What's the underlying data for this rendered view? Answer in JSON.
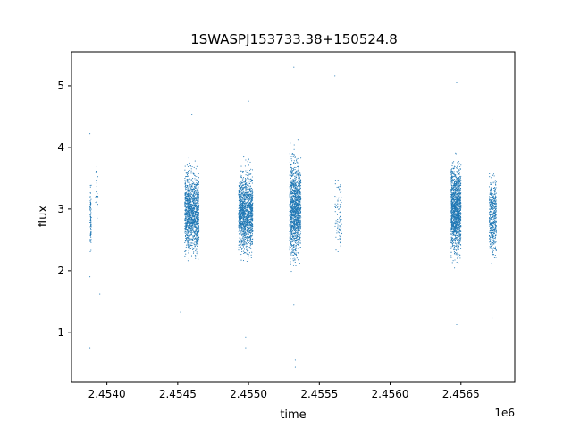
{
  "chart_data": {
    "type": "scatter",
    "title": "1SWASPJ153733.38+150524.8",
    "xlabel": "time",
    "ylabel": "flux",
    "x_offset_label": "1e6",
    "xlim": [
      2.45375,
      2.45688
    ],
    "ylim": [
      0.2,
      5.55
    ],
    "x_ticks": [
      2.454,
      2.4545,
      2.455,
      2.4555,
      2.456,
      2.4565
    ],
    "x_tick_labels": [
      "2.4540",
      "2.4545",
      "2.4550",
      "2.4555",
      "2.4560",
      "2.4565"
    ],
    "y_ticks": [
      1,
      2,
      3,
      4,
      5
    ],
    "y_tick_labels": [
      "1",
      "2",
      "3",
      "4",
      "5"
    ],
    "grid": false,
    "point_color": "#1f77b4",
    "clusters": [
      {
        "x_range": [
          2.45388,
          2.45389
        ],
        "y_center": 2.85,
        "y_spread": [
          2.2,
          3.6
        ],
        "density": "low"
      },
      {
        "x_range": [
          2.45392,
          2.45394
        ],
        "y_center": 3.3,
        "y_spread": [
          2.4,
          3.7
        ],
        "density": "sparse"
      },
      {
        "x_range": [
          2.45455,
          2.45465
        ],
        "y_center": 2.95,
        "y_spread": [
          2.1,
          3.9
        ],
        "density": "high"
      },
      {
        "x_range": [
          2.45493,
          2.45503
        ],
        "y_center": 2.95,
        "y_spread": [
          2.1,
          3.9
        ],
        "density": "high"
      },
      {
        "x_range": [
          2.45529,
          2.45537
        ],
        "y_center": 3.0,
        "y_spread": [
          2.0,
          4.2
        ],
        "density": "high"
      },
      {
        "x_range": [
          2.45561,
          2.45566
        ],
        "y_center": 2.95,
        "y_spread": [
          2.0,
          3.8
        ],
        "density": "low"
      },
      {
        "x_range": [
          2.45643,
          2.4565
        ],
        "y_center": 3.0,
        "y_spread": [
          2.0,
          4.0
        ],
        "density": "high"
      },
      {
        "x_range": [
          2.4567,
          2.45675
        ],
        "y_center": 2.9,
        "y_spread": [
          1.8,
          3.7
        ],
        "density": "medium"
      }
    ],
    "outliers": [
      {
        "x": 2.45388,
        "y": 4.22
      },
      {
        "x": 2.45388,
        "y": 0.75
      },
      {
        "x": 2.45388,
        "y": 1.9
      },
      {
        "x": 2.45395,
        "y": 1.62
      },
      {
        "x": 2.45452,
        "y": 1.33
      },
      {
        "x": 2.4546,
        "y": 4.53
      },
      {
        "x": 2.45498,
        "y": 0.92
      },
      {
        "x": 2.45498,
        "y": 0.75
      },
      {
        "x": 2.455,
        "y": 4.75
      },
      {
        "x": 2.45502,
        "y": 1.28
      },
      {
        "x": 2.45532,
        "y": 5.3
      },
      {
        "x": 2.45533,
        "y": 0.43
      },
      {
        "x": 2.45533,
        "y": 0.55
      },
      {
        "x": 2.45532,
        "y": 1.45
      },
      {
        "x": 2.45561,
        "y": 5.16
      },
      {
        "x": 2.45647,
        "y": 5.05
      },
      {
        "x": 2.45647,
        "y": 1.12
      },
      {
        "x": 2.45672,
        "y": 4.45
      },
      {
        "x": 2.45672,
        "y": 1.23
      }
    ]
  }
}
